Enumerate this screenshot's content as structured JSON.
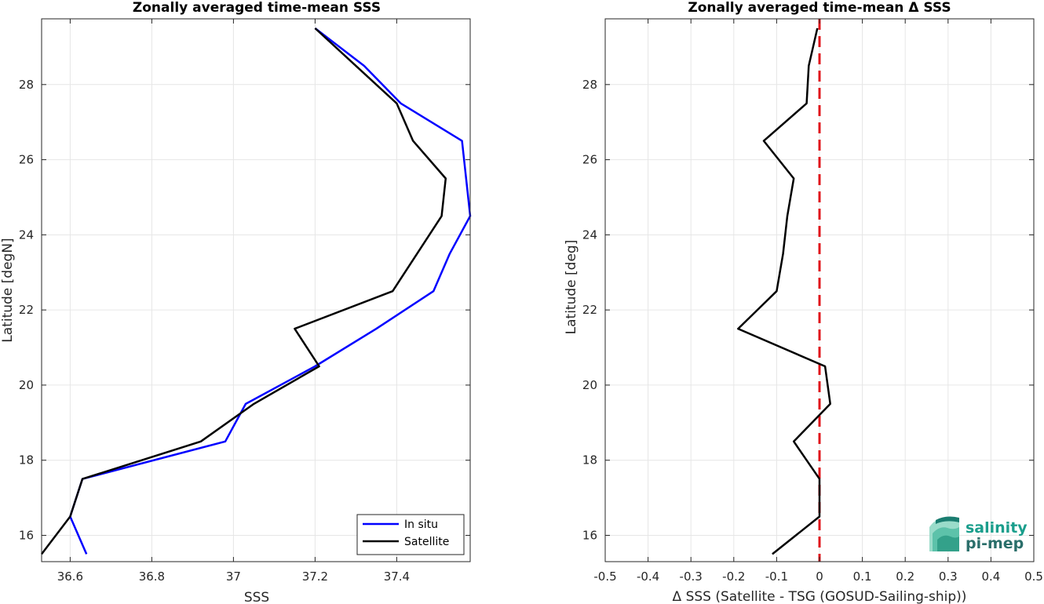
{
  "chart_data": [
    {
      "type": "line",
      "title": "Zonally averaged time-mean SSS",
      "xlabel": "SSS",
      "ylabel": "Latitude [degN]",
      "xlim": [
        36.53,
        37.58
      ],
      "ylim": [
        15.3,
        29.75
      ],
      "xticks": [
        36.6,
        36.8,
        37,
        37.2,
        37.4
      ],
      "xtick_labels": [
        "36.6",
        "36.8",
        "37",
        "37.2",
        "37.4"
      ],
      "yticks": [
        16,
        18,
        20,
        22,
        24,
        26,
        28
      ],
      "ytick_labels": [
        "16",
        "18",
        "20",
        "22",
        "24",
        "26",
        "28"
      ],
      "grid": true,
      "legend_position": "bottom-right",
      "series": [
        {
          "name": "In situ",
          "color": "#0000ff",
          "x": [
            36.64,
            36.6,
            36.63,
            36.98,
            37.03,
            37.2,
            37.35,
            37.49,
            37.53,
            37.58,
            37.57,
            37.56,
            37.41,
            37.32,
            37.2
          ],
          "y": [
            15.5,
            16.5,
            17.5,
            18.5,
            19.5,
            20.5,
            21.5,
            22.5,
            23.5,
            24.5,
            25.5,
            26.5,
            27.5,
            28.5,
            29.5
          ]
        },
        {
          "name": "Satellite",
          "color": "#000000",
          "x": [
            36.53,
            36.6,
            36.63,
            36.92,
            37.05,
            37.21,
            37.15,
            37.39,
            37.45,
            37.51,
            37.52,
            37.44,
            37.4,
            37.3,
            37.2
          ],
          "y": [
            15.5,
            16.5,
            17.5,
            18.5,
            19.5,
            20.5,
            21.5,
            22.5,
            23.5,
            24.5,
            25.5,
            26.5,
            27.5,
            28.5,
            29.5
          ]
        }
      ]
    },
    {
      "type": "line",
      "title": "Zonally averaged time-mean Δ SSS",
      "xlabel": "Δ SSS (Satellite - TSG (GOSUD-Sailing-ship))",
      "ylabel": "Latitude [deg]",
      "xlim": [
        -0.5,
        0.5
      ],
      "ylim": [
        15.3,
        29.75
      ],
      "xticks": [
        -0.5,
        -0.4,
        -0.3,
        -0.2,
        -0.1,
        0,
        0.1,
        0.2,
        0.3,
        0.4,
        0.5
      ],
      "xtick_labels": [
        "-0.5",
        "-0.4",
        "-0.3",
        "-0.2",
        "-0.1",
        "0",
        "0.1",
        "0.2",
        "0.3",
        "0.4",
        "0.5"
      ],
      "yticks": [
        16,
        18,
        20,
        22,
        24,
        26,
        28
      ],
      "ytick_labels": [
        "16",
        "18",
        "20",
        "22",
        "24",
        "26",
        "28"
      ],
      "grid": true,
      "reference_line": {
        "x": 0,
        "color": "#e0151b",
        "style": "dashed"
      },
      "series": [
        {
          "color": "#000000",
          "x": [
            -0.11,
            0.0,
            0.0,
            0.0,
            -0.06,
            0.025,
            0.013,
            -0.19,
            -0.1,
            -0.085,
            -0.075,
            -0.06,
            -0.13,
            -0.03,
            -0.025,
            -0.005
          ],
          "y": [
            15.5,
            16.5,
            17.2,
            17.5,
            18.5,
            19.5,
            20.5,
            21.5,
            22.5,
            23.5,
            24.5,
            25.5,
            26.5,
            27.5,
            28.5,
            29.5
          ]
        }
      ]
    }
  ],
  "logo": {
    "line1": "salinity",
    "line2": "pi-mep"
  }
}
